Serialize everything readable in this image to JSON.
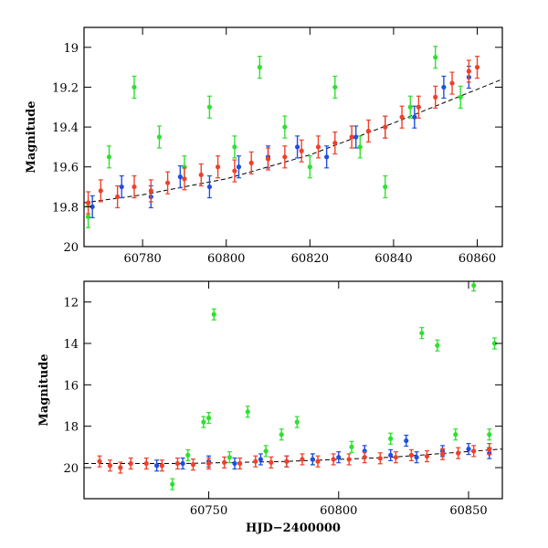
{
  "chart_data": [
    {
      "type": "scatter",
      "panel": "top",
      "title": "",
      "xlabel": "",
      "ylabel": "Magnitude",
      "xlim": [
        60766,
        60866
      ],
      "ylim": [
        20.0,
        18.9
      ],
      "y_inverted": true,
      "grid": false,
      "legend": "none",
      "xticks": [
        60780,
        60800,
        60820,
        60840,
        60860
      ],
      "yticks": [
        19.0,
        19.2,
        19.4,
        19.6,
        19.8,
        20.0
      ],
      "colors": {
        "green": "#2fe02f",
        "blue": "#1f4fe0",
        "red": "#f0402a",
        "trend": "#000000"
      },
      "trend_line": {
        "x": [
          60766,
          60780,
          60800,
          60820,
          60840,
          60866
        ],
        "y": [
          19.78,
          19.74,
          19.66,
          19.54,
          19.38,
          19.16
        ]
      },
      "series": [
        {
          "color": "green",
          "x": [
            60767,
            60772,
            60778,
            60784,
            60790,
            60796,
            60802,
            60808,
            60814,
            60820,
            60826,
            60832,
            60838,
            60844,
            60850,
            60856
          ],
          "y": [
            19.85,
            19.55,
            19.2,
            19.45,
            19.6,
            19.3,
            19.5,
            19.1,
            19.4,
            19.6,
            19.2,
            19.5,
            19.7,
            19.3,
            19.05,
            19.25
          ]
        },
        {
          "color": "blue",
          "x": [
            60768,
            60775,
            60782,
            60789,
            60796,
            60803,
            60810,
            60817,
            60824,
            60831,
            60838,
            60845,
            60852,
            60858
          ],
          "y": [
            19.8,
            19.7,
            19.75,
            19.65,
            19.7,
            19.6,
            19.55,
            19.5,
            19.55,
            19.45,
            19.4,
            19.35,
            19.2,
            19.15
          ]
        },
        {
          "color": "red",
          "x": [
            60767,
            60770,
            60774,
            60778,
            60782,
            60786,
            60790,
            60794,
            60798,
            60802,
            60806,
            60810,
            60814,
            60818,
            60822,
            60826,
            60830,
            60834,
            60838,
            60842,
            60846,
            60850,
            60854,
            60858,
            60860
          ],
          "y": [
            19.78,
            19.72,
            19.75,
            19.7,
            19.72,
            19.68,
            19.66,
            19.64,
            19.6,
            19.62,
            19.58,
            19.56,
            19.55,
            19.52,
            19.5,
            19.48,
            19.45,
            19.42,
            19.4,
            19.35,
            19.3,
            19.25,
            19.18,
            19.12,
            19.1
          ]
        }
      ]
    },
    {
      "type": "scatter",
      "panel": "bottom",
      "title": "",
      "xlabel": "HJD−2400000",
      "ylabel": "Magnitude",
      "xlim": [
        60702,
        60863
      ],
      "ylim": [
        21.5,
        11.0
      ],
      "y_inverted": true,
      "grid": false,
      "legend": "none",
      "xticks": [
        60750,
        60800,
        60850
      ],
      "yticks": [
        12,
        14,
        16,
        18,
        20
      ],
      "colors": {
        "green": "#2fe02f",
        "blue": "#1f4fe0",
        "red": "#f0402a",
        "trend": "#000000"
      },
      "trend_line": {
        "x": [
          60702,
          60740,
          60780,
          60820,
          60863
        ],
        "y": [
          19.8,
          19.8,
          19.7,
          19.5,
          19.1
        ]
      },
      "series": [
        {
          "color": "green",
          "x": [
            60736,
            60742,
            60748,
            60750,
            60752,
            60758,
            60765,
            60772,
            60778,
            60784,
            60790,
            60805,
            60820,
            60832,
            60838,
            60845,
            60852,
            60858,
            60860
          ],
          "y": [
            20.8,
            19.4,
            17.8,
            17.6,
            12.6,
            19.5,
            17.3,
            19.2,
            18.4,
            17.8,
            19.6,
            19.0,
            18.6,
            13.5,
            14.1,
            18.4,
            11.2,
            18.4,
            14.0
          ]
        },
        {
          "color": "blue",
          "x": [
            60730,
            60740,
            60750,
            60760,
            60770,
            60780,
            60790,
            60800,
            60810,
            60820,
            60826,
            60830,
            60840,
            60850,
            60858
          ],
          "y": [
            19.9,
            19.8,
            19.7,
            19.8,
            19.6,
            19.7,
            19.6,
            19.5,
            19.2,
            19.4,
            18.7,
            19.5,
            19.2,
            19.1,
            19.3
          ]
        },
        {
          "color": "red",
          "x": [
            60708,
            60712,
            60716,
            60720,
            60726,
            60732,
            60738,
            60744,
            60750,
            60756,
            60762,
            60768,
            60774,
            60780,
            60786,
            60792,
            60798,
            60804,
            60810,
            60816,
            60822,
            60828,
            60834,
            60840,
            60846,
            60852,
            60858
          ],
          "y": [
            19.7,
            19.9,
            20.0,
            19.8,
            19.8,
            19.9,
            19.8,
            19.85,
            19.8,
            19.75,
            19.8,
            19.7,
            19.75,
            19.7,
            19.6,
            19.7,
            19.6,
            19.6,
            19.5,
            19.55,
            19.5,
            19.4,
            19.45,
            19.35,
            19.3,
            19.2,
            19.1
          ]
        }
      ]
    }
  ]
}
